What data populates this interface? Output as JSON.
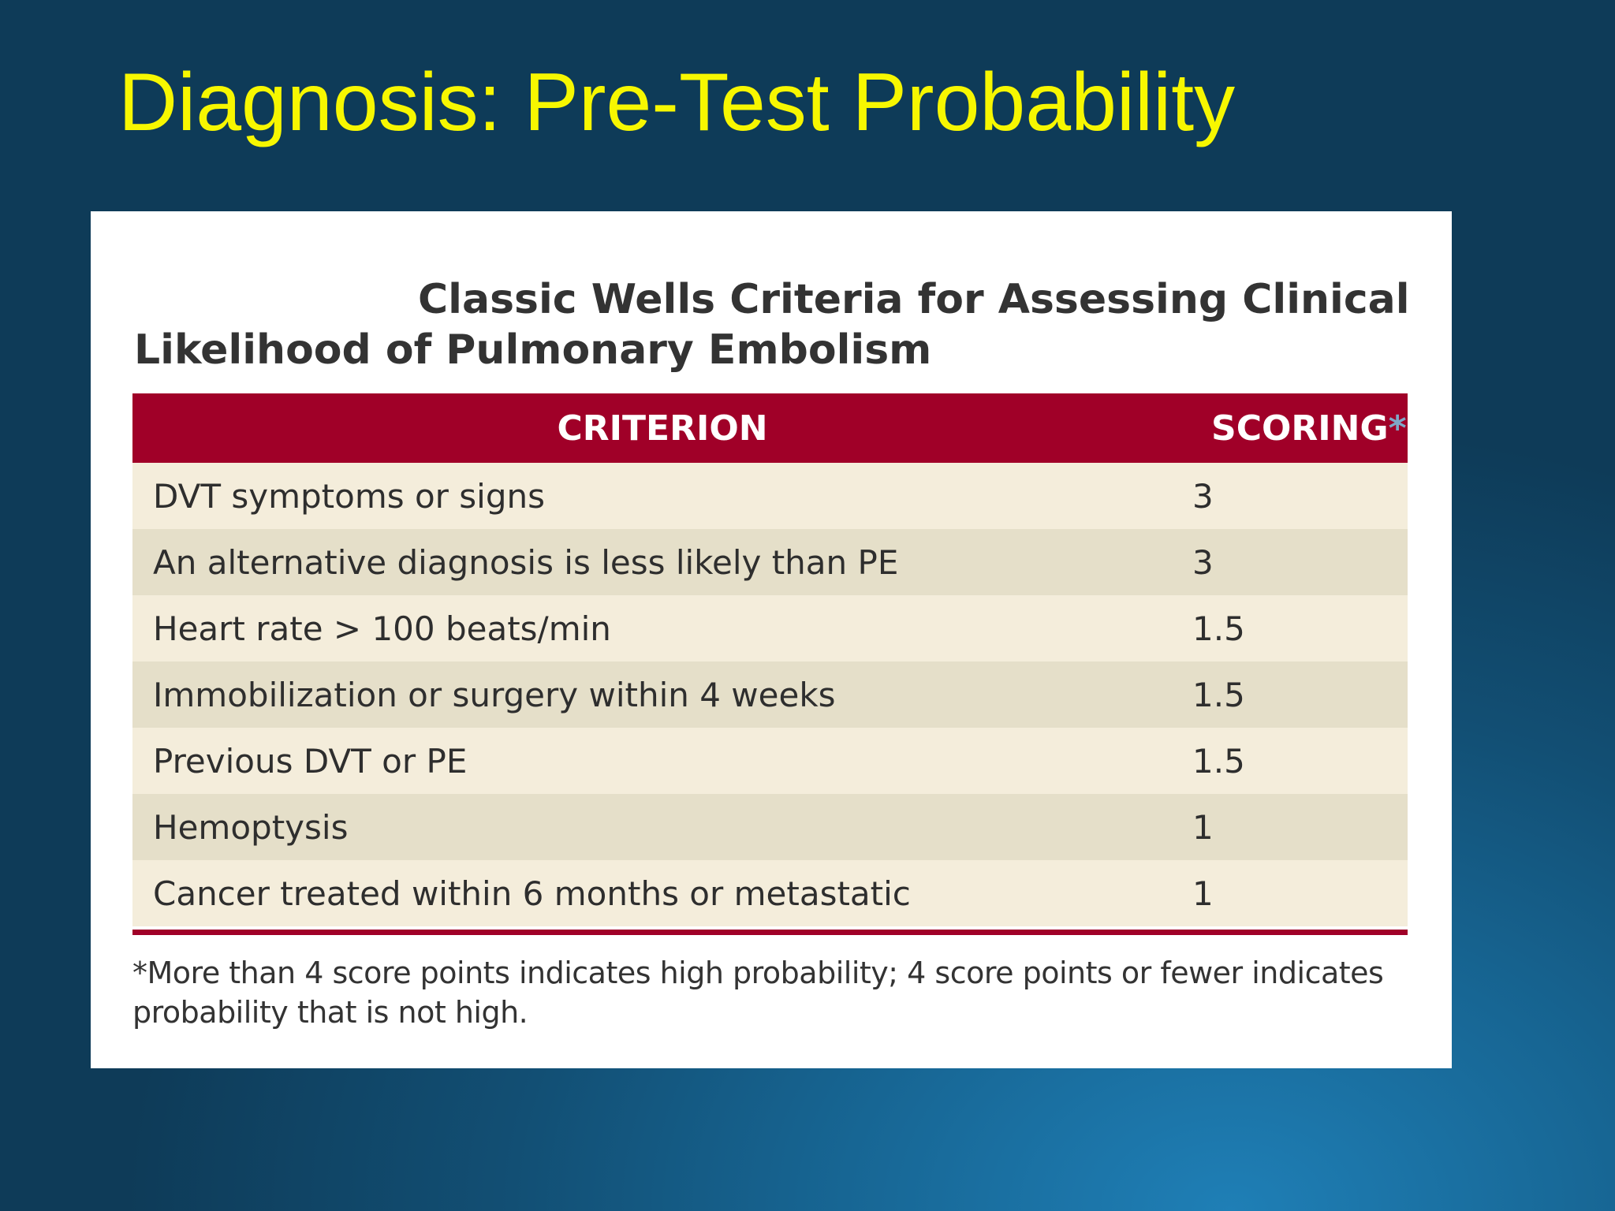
{
  "slide": {
    "title": "Diagnosis: Pre-Test Probability"
  },
  "table": {
    "title_line1": "Classic Wells Criteria for Assessing Clinical",
    "title_line2": "Likelihood of Pulmonary Embolism",
    "header_criterion": "CRITERION",
    "header_scoring": "SCORING",
    "header_scoring_marker": "*",
    "rows": [
      {
        "criterion": "DVT symptoms or signs",
        "score": "3"
      },
      {
        "criterion": "An alternative diagnosis is less likely than PE",
        "score": "3"
      },
      {
        "criterion": "Heart rate > 100 beats/min",
        "score": "1.5"
      },
      {
        "criterion": "Immobilization or surgery within 4 weeks",
        "score": "1.5"
      },
      {
        "criterion": "Previous DVT or PE",
        "score": "1.5"
      },
      {
        "criterion": "Hemoptysis",
        "score": "1"
      },
      {
        "criterion": "Cancer treated within 6 months or metastatic",
        "score": "1"
      }
    ],
    "footnote_line1": "*More than 4 score points indicates high probability; 4 score points or fewer indicates",
    "footnote_line2": "probability that is not high."
  },
  "colors": {
    "title_yellow": "#f7f700",
    "header_red": "#a00028",
    "row_light": "#f4eddb",
    "row_dark": "#e5dfc9"
  }
}
